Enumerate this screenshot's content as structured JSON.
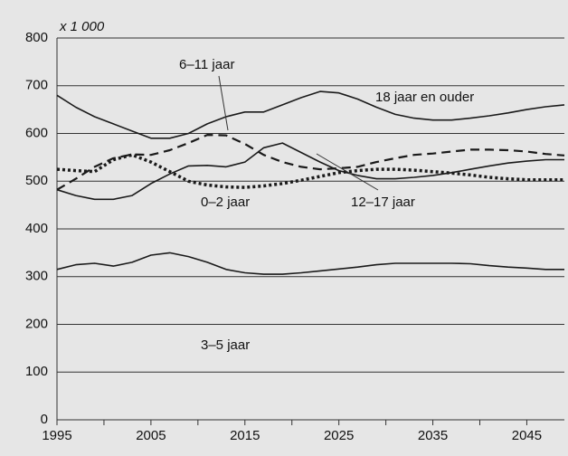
{
  "chart_data": {
    "type": "line",
    "y_axis_label": "x 1 000",
    "x": [
      1995,
      1997,
      1999,
      2001,
      2003,
      2005,
      2007,
      2009,
      2011,
      2013,
      2015,
      2017,
      2019,
      2021,
      2023,
      2025,
      2027,
      2029,
      2031,
      2033,
      2035,
      2037,
      2039,
      2041,
      2043,
      2045,
      2047,
      2049
    ],
    "series": [
      {
        "name": "18 jaar en ouder",
        "color": "#1a1a1a",
        "style": "solid",
        "values": [
          680,
          655,
          635,
          620,
          605,
          590,
          590,
          600,
          620,
          635,
          645,
          645,
          660,
          675,
          688,
          685,
          672,
          655,
          640,
          632,
          628,
          628,
          632,
          637,
          643,
          650,
          656,
          660
        ]
      },
      {
        "name": "6–11 jaar",
        "color": "#1a1a1a",
        "style": "dashed",
        "values": [
          482,
          505,
          530,
          548,
          556,
          555,
          565,
          580,
          597,
          596,
          578,
          555,
          540,
          530,
          525,
          527,
          530,
          540,
          548,
          555,
          558,
          562,
          566,
          566,
          565,
          562,
          557,
          554
        ]
      },
      {
        "name": "12–17 jaar",
        "color": "#1a1a1a",
        "style": "solid",
        "values": [
          482,
          470,
          462,
          462,
          470,
          495,
          515,
          532,
          533,
          530,
          540,
          570,
          580,
          560,
          540,
          522,
          512,
          505,
          505,
          508,
          512,
          518,
          525,
          532,
          538,
          542,
          545,
          545
        ]
      },
      {
        "name": "0–2 jaar",
        "color": "#1a1a1a",
        "style": "dotted",
        "values": [
          525,
          522,
          520,
          545,
          555,
          540,
          520,
          500,
          492,
          488,
          487,
          490,
          495,
          502,
          510,
          518,
          522,
          525,
          525,
          523,
          520,
          517,
          513,
          508,
          505,
          503,
          503,
          503
        ]
      },
      {
        "name": "3–5 jaar",
        "color": "#1a1a1a",
        "style": "solid",
        "values": [
          315,
          325,
          328,
          322,
          330,
          345,
          350,
          342,
          330,
          315,
          308,
          305,
          305,
          308,
          312,
          316,
          320,
          325,
          328,
          328,
          328,
          328,
          327,
          323,
          320,
          318,
          315,
          315
        ]
      }
    ],
    "xlim": [
      1995,
      2049
    ],
    "xticks": [
      1995,
      2005,
      2015,
      2025,
      2035,
      2045
    ],
    "xminorticks": [
      2000,
      2010,
      2020,
      2030,
      2040
    ],
    "ylim": [
      0,
      800
    ],
    "yticks": [
      0,
      100,
      200,
      300,
      400,
      500,
      600,
      700,
      800
    ],
    "grid": true
  }
}
